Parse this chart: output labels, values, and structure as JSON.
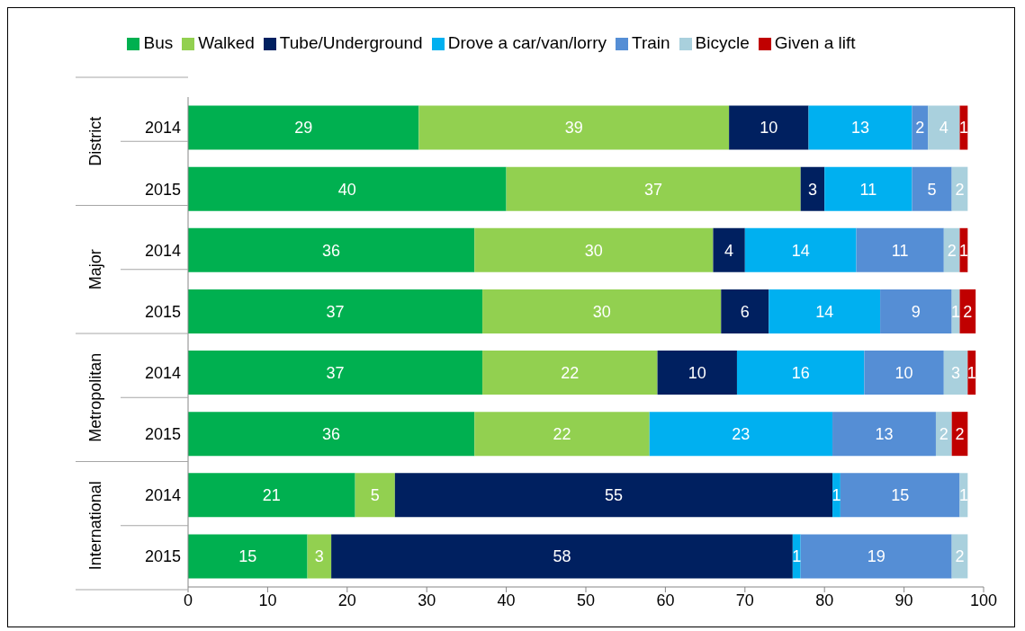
{
  "chart_data": {
    "type": "bar",
    "orientation": "horizontal",
    "stacked": true,
    "data_labels": true,
    "legend": "top",
    "grid": false,
    "categories": [
      "2014",
      "2015",
      "2014",
      "2015",
      "2014",
      "2015",
      "2014",
      "2015"
    ],
    "annotations": [
      "District",
      "Major",
      "Metropolitan",
      "International"
    ],
    "xlim": [
      0,
      100
    ],
    "xticks": [
      0,
      10,
      20,
      30,
      40,
      50,
      60,
      70,
      80,
      90,
      100
    ],
    "series": [
      {
        "name": "Bus",
        "color": "#00b050",
        "values": [
          29,
          40,
          36,
          37,
          37,
          36,
          21,
          15
        ]
      },
      {
        "name": "Walked",
        "color": "#92d050",
        "values": [
          39,
          37,
          30,
          30,
          22,
          22,
          5,
          3
        ]
      },
      {
        "name": "Tube/Underground",
        "color": "#002060",
        "values": [
          10,
          3,
          4,
          6,
          10,
          null,
          55,
          58
        ]
      },
      {
        "name": "Drove a car/van/lorry",
        "color": "#00b0f0",
        "values": [
          13,
          11,
          14,
          14,
          16,
          23,
          1,
          1
        ]
      },
      {
        "name": "Train",
        "color": "#558ed5",
        "values": [
          2,
          5,
          11,
          9,
          10,
          13,
          15,
          19
        ]
      },
      {
        "name": "Bicycle",
        "color": "#a9d0dd",
        "values": [
          4,
          2,
          2,
          1,
          3,
          2,
          1,
          2
        ]
      },
      {
        "name": "Given a lift",
        "color": "#c00000",
        "values": [
          1,
          null,
          1,
          2,
          1,
          2,
          null,
          null
        ]
      }
    ]
  }
}
